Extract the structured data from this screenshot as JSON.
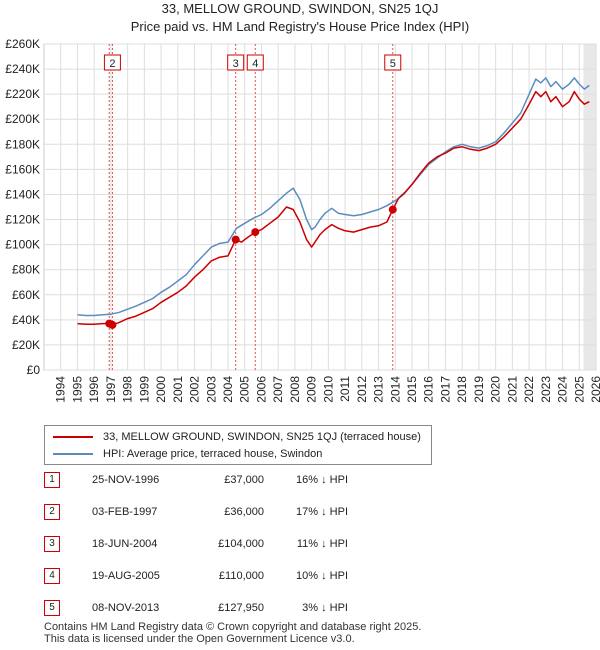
{
  "chart_data": {
    "type": "line",
    "title": "33, MELLOW GROUND, SWINDON, SN25 1QJ",
    "subtitle": "Price paid vs. HM Land Registry's House Price Index (HPI)",
    "xlabel": "",
    "ylabel": "",
    "xlim": [
      1993.0,
      2026.0
    ],
    "ylim": [
      0,
      260000
    ],
    "grid": true,
    "y_ticks": [
      0,
      20000,
      40000,
      60000,
      80000,
      100000,
      120000,
      140000,
      160000,
      180000,
      200000,
      220000,
      240000,
      260000
    ],
    "y_tick_labels": [
      "£0",
      "£20K",
      "£40K",
      "£60K",
      "£80K",
      "£100K",
      "£120K",
      "£140K",
      "£160K",
      "£180K",
      "£200K",
      "£220K",
      "£240K",
      "£260K"
    ],
    "x_ticks": [
      1994,
      1995,
      1996,
      1997,
      1998,
      1999,
      2000,
      2001,
      2002,
      2003,
      2004,
      2005,
      2006,
      2007,
      2008,
      2009,
      2010,
      2011,
      2012,
      2013,
      2014,
      2015,
      2016,
      2017,
      2018,
      2019,
      2020,
      2021,
      2022,
      2023,
      2024,
      2025,
      2026
    ],
    "x_tick_labels": [
      "1994",
      "1995",
      "1996",
      "1997",
      "1998",
      "1999",
      "2000",
      "2001",
      "2002",
      "2003",
      "2004",
      "2005",
      "2006",
      "2007",
      "2008",
      "2009",
      "2010",
      "2011",
      "2012",
      "2013",
      "2014",
      "2015",
      "2016",
      "2017",
      "2018",
      "2019",
      "2020",
      "2021",
      "2022",
      "2023",
      "2024",
      "2025",
      "2026"
    ],
    "series": [
      {
        "name": "33, MELLOW GROUND, SWINDON, SN25 1QJ (terraced house)",
        "color": "#cc0000",
        "x": [
          1995.0,
          1995.5,
          1996.0,
          1996.5,
          1996.9,
          1997.09,
          1997.5,
          1998.0,
          1998.5,
          1999.0,
          1999.5,
          2000.0,
          2000.5,
          2001.0,
          2001.5,
          2002.0,
          2002.5,
          2003.0,
          2003.5,
          2004.0,
          2004.46,
          2004.8,
          2005.2,
          2005.63,
          2006.0,
          2006.5,
          2007.0,
          2007.5,
          2007.9,
          2008.3,
          2008.7,
          2009.0,
          2009.2,
          2009.5,
          2009.8,
          2010.2,
          2010.6,
          2011.0,
          2011.5,
          2012.0,
          2012.5,
          2013.0,
          2013.5,
          2013.85,
          2014.2,
          2014.6,
          2015.0,
          2015.5,
          2016.0,
          2016.5,
          2017.0,
          2017.5,
          2018.0,
          2018.5,
          2019.0,
          2019.5,
          2020.0,
          2020.5,
          2021.0,
          2021.5,
          2022.0,
          2022.4,
          2022.7,
          2023.0,
          2023.3,
          2023.6,
          2024.0,
          2024.4,
          2024.7,
          2025.0,
          2025.3,
          2025.6
        ],
        "values": [
          37000,
          36500,
          36500,
          37000,
          37000,
          36000,
          38000,
          41000,
          43000,
          46000,
          49000,
          54000,
          58000,
          62000,
          67000,
          74000,
          80000,
          87000,
          90000,
          91000,
          104000,
          102000,
          106000,
          110000,
          112000,
          117000,
          122000,
          130000,
          128000,
          118000,
          104000,
          98000,
          102000,
          108000,
          112000,
          116000,
          113000,
          111000,
          110000,
          112000,
          114000,
          115000,
          118000,
          127950,
          137000,
          142000,
          148000,
          157000,
          165000,
          170000,
          173000,
          177000,
          178000,
          176000,
          175000,
          177000,
          180000,
          186000,
          193000,
          200000,
          212000,
          222000,
          218000,
          222000,
          214000,
          218000,
          210000,
          214000,
          222000,
          216000,
          212000,
          214000
        ]
      },
      {
        "name": "HPI: Average price, terraced house, Swindon",
        "color": "#5b8cc0",
        "x": [
          1995.0,
          1995.5,
          1996.0,
          1996.5,
          1997.0,
          1997.5,
          1998.0,
          1998.5,
          1999.0,
          1999.5,
          2000.0,
          2000.5,
          2001.0,
          2001.5,
          2002.0,
          2002.5,
          2003.0,
          2003.5,
          2004.0,
          2004.5,
          2005.0,
          2005.5,
          2006.0,
          2006.5,
          2007.0,
          2007.5,
          2007.9,
          2008.3,
          2008.7,
          2009.0,
          2009.2,
          2009.5,
          2009.8,
          2010.2,
          2010.6,
          2011.0,
          2011.5,
          2012.0,
          2012.5,
          2013.0,
          2013.5,
          2014.0,
          2014.5,
          2015.0,
          2015.5,
          2016.0,
          2016.5,
          2017.0,
          2017.5,
          2018.0,
          2018.5,
          2019.0,
          2019.5,
          2020.0,
          2020.5,
          2021.0,
          2021.5,
          2022.0,
          2022.4,
          2022.7,
          2023.0,
          2023.3,
          2023.6,
          2024.0,
          2024.4,
          2024.7,
          2025.0,
          2025.3,
          2025.6
        ],
        "values": [
          44000,
          43500,
          43500,
          44000,
          44500,
          46000,
          48500,
          51000,
          54000,
          57000,
          62000,
          66000,
          71000,
          76000,
          84000,
          91000,
          98000,
          101000,
          102000,
          113000,
          117000,
          121000,
          124000,
          129000,
          135000,
          141000,
          145000,
          136000,
          120000,
          112000,
          114000,
          120000,
          125000,
          129000,
          125000,
          124000,
          123000,
          124000,
          126000,
          128000,
          131000,
          135000,
          140000,
          148000,
          156000,
          164000,
          169000,
          174000,
          178000,
          180000,
          178000,
          177000,
          179000,
          182000,
          189000,
          197000,
          205000,
          220000,
          232000,
          229000,
          233000,
          226000,
          230000,
          224000,
          228000,
          233000,
          228000,
          224000,
          227000
        ]
      }
    ],
    "sales": [
      {
        "n": "1",
        "year": 1996.9,
        "price": 37000
      },
      {
        "n": "2",
        "year": 1997.09,
        "price": 36000
      },
      {
        "n": "3",
        "year": 2004.46,
        "price": 104000
      },
      {
        "n": "4",
        "year": 2005.63,
        "price": 110000
      },
      {
        "n": "5",
        "year": 2013.85,
        "price": 127950
      }
    ],
    "visible_markers": [
      "2",
      "3",
      "4",
      "5"
    ]
  },
  "header": {
    "title": "33, MELLOW GROUND, SWINDON, SN25 1QJ",
    "subtitle": "Price paid vs. HM Land Registry's House Price Index (HPI)"
  },
  "legend": {
    "property_label": "33, MELLOW GROUND, SWINDON, SN25 1QJ (terraced house)",
    "hpi_label": "HPI: Average price, terraced house, Swindon"
  },
  "sales_table": [
    {
      "num": "1",
      "date": "25-NOV-1996",
      "price": "£37,000",
      "hpi": "16% ↓ HPI"
    },
    {
      "num": "2",
      "date": "03-FEB-1997",
      "price": "£36,000",
      "hpi": "17% ↓ HPI"
    },
    {
      "num": "3",
      "date": "18-JUN-2004",
      "price": "£104,000",
      "hpi": "11% ↓ HPI"
    },
    {
      "num": "4",
      "date": "19-AUG-2005",
      "price": "£110,000",
      "hpi": "10% ↓ HPI"
    },
    {
      "num": "5",
      "date": "08-NOV-2013",
      "price": "£127,950",
      "hpi": "3% ↓ HPI"
    }
  ],
  "footer": {
    "line1": "Contains HM Land Registry data © Crown copyright and database right 2025.",
    "line2": "This data is licensed under the Open Government Licence v3.0."
  }
}
